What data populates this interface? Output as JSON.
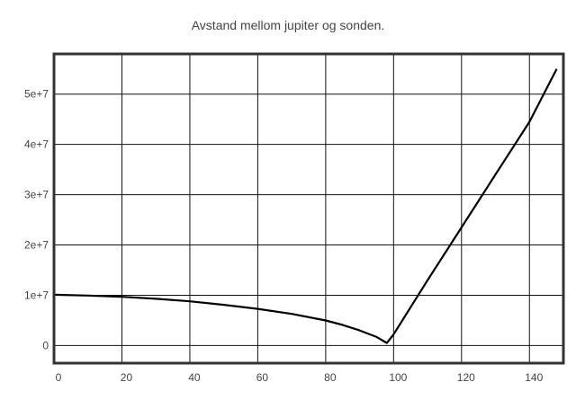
{
  "chart_data": {
    "type": "line",
    "title": "Avstand mellom jupiter og sonden.",
    "xlabel": "",
    "ylabel": "",
    "xlim": [
      0,
      150
    ],
    "ylim": [
      -3500000,
      58000000
    ],
    "grid": true,
    "x_ticks": [
      0,
      20,
      40,
      60,
      80,
      100,
      120,
      140
    ],
    "y_ticks": [
      0,
      10000000,
      20000000,
      30000000,
      40000000,
      50000000
    ],
    "x_tick_labels": [
      "0",
      "20",
      "40",
      "60",
      "80",
      "100",
      "120",
      "140"
    ],
    "y_tick_labels": [
      "0",
      "1e+7",
      "2e+7",
      "3e+7",
      "4e+7",
      "5e+7"
    ],
    "series": [
      {
        "x": [
          0,
          10,
          20,
          30,
          40,
          50,
          60,
          70,
          80,
          85,
          90,
          95,
          98,
          100,
          110,
          120,
          130,
          140,
          148
        ],
        "y": [
          10100000,
          9950000,
          9700000,
          9300000,
          8800000,
          8100000,
          7300000,
          6300000,
          5000000,
          4100000,
          3000000,
          1700000,
          500000,
          2200000,
          13000000,
          23500000,
          34000000,
          44500000,
          55000000
        ]
      }
    ]
  }
}
